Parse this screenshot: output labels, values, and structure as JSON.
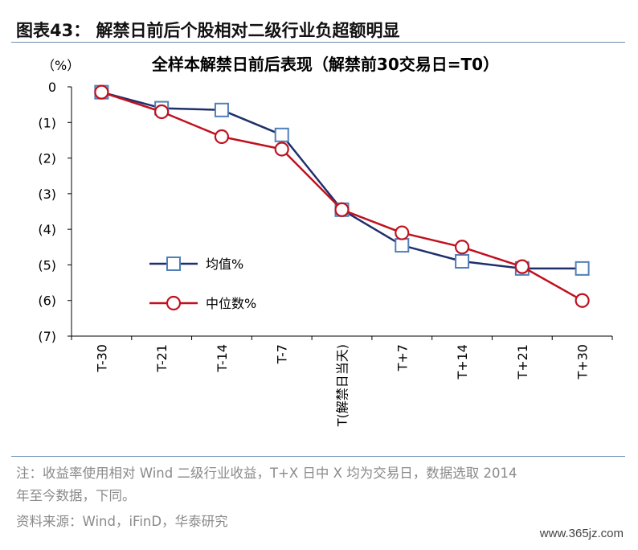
{
  "figure": {
    "title": "图表43：  解禁日前后个股相对二级行业负超额明显"
  },
  "chart_data": {
    "type": "line",
    "title": "全样本解禁日前后表现（解禁前30交易日=T0）",
    "unit_label": "（%）",
    "categories": [
      "T-30",
      "T-21",
      "T-14",
      "T-7",
      "T(解禁日当天)",
      "T+7",
      "T+14",
      "T+21",
      "T+30"
    ],
    "y_ticks": [
      "0",
      "(1)",
      "(2)",
      "(3)",
      "(4)",
      "(5)",
      "(6)",
      "(7)"
    ],
    "ylim": [
      -7,
      0
    ],
    "series": [
      {
        "name": "均值%",
        "marker": "square",
        "color": "#1f2f6b",
        "marker_color": "#4f7fb8",
        "values": [
          -0.15,
          -0.6,
          -0.65,
          -1.35,
          -3.45,
          -4.45,
          -4.9,
          -5.1,
          -5.1
        ]
      },
      {
        "name": "中位数%",
        "marker": "circle",
        "color": "#c0111f",
        "marker_color": "#c0111f",
        "values": [
          -0.15,
          -0.7,
          -1.4,
          -1.75,
          -3.45,
          -4.1,
          -4.5,
          -5.05,
          -6.0
        ]
      }
    ],
    "legend_position": "lower-left",
    "grid": false
  },
  "notes": {
    "line1": "注：收益率使用相对 Wind 二级行业收益，T+X 日中 X 均为交易日，数据选取 2014",
    "line2": "年至今数据，下同。",
    "source": "资料来源：Wind，iFinD，华泰研究"
  },
  "watermark": "www.365jz.com"
}
